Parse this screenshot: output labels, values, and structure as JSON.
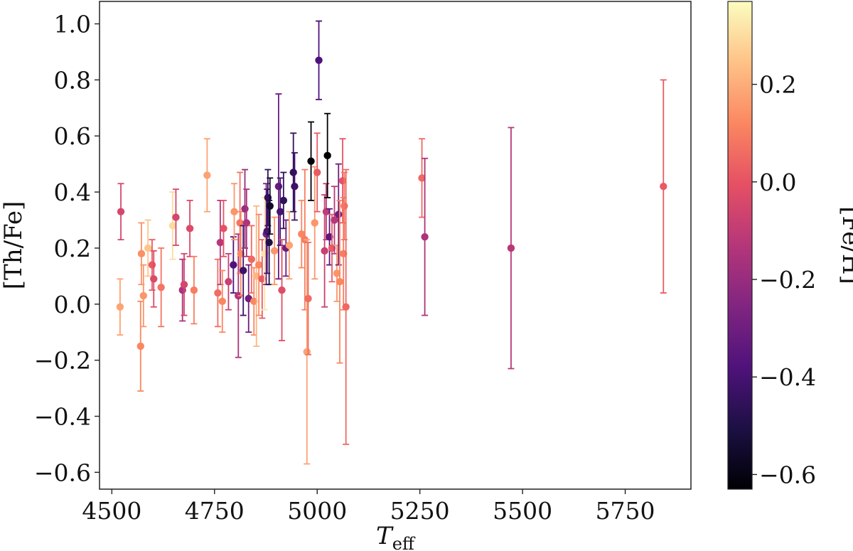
{
  "chart_data": {
    "type": "scatter",
    "xlabel": "T",
    "xlabel_sub": "eff",
    "ylabel": "[Th/Fe]",
    "xlim": [
      4470,
      5910
    ],
    "ylim": [
      -0.66,
      1.08
    ],
    "xticks": [
      4500,
      4750,
      5000,
      5250,
      5500,
      5750
    ],
    "xtick_labels": [
      "4500",
      "4750",
      "5000",
      "5250",
      "5500",
      "5750"
    ],
    "yticks": [
      -0.6,
      -0.4,
      -0.2,
      0.0,
      0.2,
      0.4,
      0.6,
      0.8,
      1.0
    ],
    "ytick_labels": [
      "−0.6",
      "−0.4",
      "−0.2",
      "0.0",
      "0.2",
      "0.4",
      "0.6",
      "0.8",
      "1.0"
    ],
    "error_bars": true,
    "colorbar": {
      "label": "[Fe/H]",
      "colormap": "magma",
      "range": [
        -0.63,
        0.37
      ],
      "ticks": [
        -0.6,
        -0.4,
        -0.2,
        0.0,
        0.2
      ],
      "tick_labels": [
        "−0.6",
        "−0.4",
        "−0.2",
        "0.0",
        "0.2"
      ]
    },
    "points": [
      {
        "x": 4520,
        "y": -0.01,
        "err": 0.1,
        "feh": 0.18
      },
      {
        "x": 4522,
        "y": 0.33,
        "err": 0.1,
        "feh": -0.05
      },
      {
        "x": 4570,
        "y": -0.15,
        "err": 0.16,
        "feh": 0.12
      },
      {
        "x": 4572,
        "y": 0.18,
        "err": 0.11,
        "feh": 0.14
      },
      {
        "x": 4577,
        "y": 0.03,
        "err": 0.11,
        "feh": 0.15
      },
      {
        "x": 4588,
        "y": 0.2,
        "err": 0.1,
        "feh": 0.25
      },
      {
        "x": 4598,
        "y": 0.14,
        "err": 0.09,
        "feh": 0.02
      },
      {
        "x": 4602,
        "y": 0.09,
        "err": 0.1,
        "feh": -0.03
      },
      {
        "x": 4620,
        "y": 0.06,
        "err": 0.14,
        "feh": 0.08
      },
      {
        "x": 4648,
        "y": 0.28,
        "err": 0.12,
        "feh": 0.3
      },
      {
        "x": 4656,
        "y": 0.31,
        "err": 0.1,
        "feh": -0.05
      },
      {
        "x": 4672,
        "y": 0.05,
        "err": 0.11,
        "feh": -0.15
      },
      {
        "x": 4676,
        "y": 0.07,
        "err": 0.11,
        "feh": -0.05
      },
      {
        "x": 4690,
        "y": 0.27,
        "err": 0.1,
        "feh": -0.03
      },
      {
        "x": 4700,
        "y": 0.05,
        "err": 0.12,
        "feh": 0.1
      },
      {
        "x": 4732,
        "y": 0.46,
        "err": 0.13,
        "feh": 0.18
      },
      {
        "x": 4758,
        "y": 0.04,
        "err": 0.12,
        "feh": 0.06
      },
      {
        "x": 4764,
        "y": 0.22,
        "err": 0.15,
        "feh": -0.12
      },
      {
        "x": 4769,
        "y": 0.01,
        "err": 0.11,
        "feh": 0.12
      },
      {
        "x": 4772,
        "y": 0.27,
        "err": 0.1,
        "feh": 0.0
      },
      {
        "x": 4784,
        "y": 0.08,
        "err": 0.1,
        "feh": -0.08
      },
      {
        "x": 4796,
        "y": 0.14,
        "err": 0.1,
        "feh": -0.38
      },
      {
        "x": 4798,
        "y": 0.33,
        "err": 0.1,
        "feh": 0.15
      },
      {
        "x": 4808,
        "y": 0.03,
        "err": 0.22,
        "feh": -0.15
      },
      {
        "x": 4812,
        "y": 0.29,
        "err": 0.18,
        "feh": 0.08
      },
      {
        "x": 4814,
        "y": 0.18,
        "err": 0.15,
        "feh": 0.12
      },
      {
        "x": 4820,
        "y": 0.12,
        "err": 0.16,
        "feh": -0.42
      },
      {
        "x": 4824,
        "y": 0.34,
        "err": 0.14,
        "feh": -0.2
      },
      {
        "x": 4828,
        "y": 0.29,
        "err": 0.12,
        "feh": -0.15
      },
      {
        "x": 4833,
        "y": 0.02,
        "err": 0.12,
        "feh": -0.3
      },
      {
        "x": 4840,
        "y": 0.16,
        "err": 0.12,
        "feh": 0.05
      },
      {
        "x": 4846,
        "y": 0.01,
        "err": 0.12,
        "feh": 0.12
      },
      {
        "x": 4852,
        "y": 0.1,
        "err": 0.25,
        "feh": 0.22
      },
      {
        "x": 4858,
        "y": 0.14,
        "err": 0.18,
        "feh": 0.12
      },
      {
        "x": 4866,
        "y": 0.09,
        "err": 0.14,
        "feh": 0.02
      },
      {
        "x": 4872,
        "y": 0.18,
        "err": 0.2,
        "feh": 0.32
      },
      {
        "x": 4876,
        "y": 0.25,
        "err": 0.18,
        "feh": -0.28
      },
      {
        "x": 4878,
        "y": 0.26,
        "err": 0.15,
        "feh": -0.4
      },
      {
        "x": 4880,
        "y": 0.38,
        "err": 0.1,
        "feh": -0.45
      },
      {
        "x": 4883,
        "y": 0.22,
        "err": 0.15,
        "feh": -0.5
      },
      {
        "x": 4885,
        "y": 0.35,
        "err": 0.1,
        "feh": -0.55
      },
      {
        "x": 4896,
        "y": 0.19,
        "err": 0.12,
        "feh": 0.15
      },
      {
        "x": 4906,
        "y": 0.42,
        "err": 0.33,
        "feh": -0.32
      },
      {
        "x": 4910,
        "y": 0.33,
        "err": 0.12,
        "feh": -0.4
      },
      {
        "x": 4914,
        "y": 0.05,
        "err": 0.18,
        "feh": -0.02
      },
      {
        "x": 4918,
        "y": 0.37,
        "err": 0.1,
        "feh": -0.45
      },
      {
        "x": 4924,
        "y": 0.2,
        "err": 0.1,
        "feh": -0.3
      },
      {
        "x": 4932,
        "y": 0.21,
        "err": 0.12,
        "feh": 0.18
      },
      {
        "x": 4942,
        "y": 0.47,
        "err": 0.14,
        "feh": -0.45
      },
      {
        "x": 4945,
        "y": 0.42,
        "err": 0.12,
        "feh": -0.42
      },
      {
        "x": 4962,
        "y": 0.25,
        "err": 0.12,
        "feh": 0.12
      },
      {
        "x": 4970,
        "y": 0.23,
        "err": 0.25,
        "feh": 0.1
      },
      {
        "x": 4975,
        "y": -0.17,
        "err": 0.4,
        "feh": 0.18
      },
      {
        "x": 4978,
        "y": 0.02,
        "err": 0.2,
        "feh": 0.06
      },
      {
        "x": 4985,
        "y": 0.51,
        "err": 0.14,
        "feh": -0.62
      },
      {
        "x": 4994,
        "y": 0.29,
        "err": 0.2,
        "feh": 0.15
      },
      {
        "x": 5000,
        "y": 0.47,
        "err": 0.14,
        "feh": 0.02
      },
      {
        "x": 5004,
        "y": 0.87,
        "err": 0.14,
        "feh": -0.38
      },
      {
        "x": 5018,
        "y": 0.19,
        "err": 0.2,
        "feh": -0.08
      },
      {
        "x": 5022,
        "y": 0.33,
        "err": 0.1,
        "feh": -0.1
      },
      {
        "x": 5025,
        "y": 0.53,
        "err": 0.15,
        "feh": -0.63
      },
      {
        "x": 5030,
        "y": 0.24,
        "err": 0.1,
        "feh": -0.35
      },
      {
        "x": 5036,
        "y": 0.2,
        "err": 0.12,
        "feh": 0.02
      },
      {
        "x": 5042,
        "y": 0.3,
        "err": 0.12,
        "feh": -0.12
      },
      {
        "x": 5048,
        "y": 0.11,
        "err": 0.1,
        "feh": 0.15
      },
      {
        "x": 5052,
        "y": 0.32,
        "err": 0.18,
        "feh": -0.3
      },
      {
        "x": 5055,
        "y": 0.08,
        "err": 0.29,
        "feh": 0.12
      },
      {
        "x": 5062,
        "y": 0.44,
        "err": 0.15,
        "feh": 0.0
      },
      {
        "x": 5064,
        "y": 0.18,
        "err": 0.2,
        "feh": 0.1
      },
      {
        "x": 5066,
        "y": 0.35,
        "err": 0.12,
        "feh": 0.08
      },
      {
        "x": 5070,
        "y": -0.01,
        "err": 0.49,
        "feh": 0.05
      },
      {
        "x": 5255,
        "y": 0.45,
        "err": 0.14,
        "feh": 0.05
      },
      {
        "x": 5262,
        "y": 0.24,
        "err": 0.28,
        "feh": -0.15
      },
      {
        "x": 5472,
        "y": 0.2,
        "err": 0.43,
        "feh": -0.12
      },
      {
        "x": 5843,
        "y": 0.42,
        "err": 0.38,
        "feh": 0.02
      }
    ]
  }
}
